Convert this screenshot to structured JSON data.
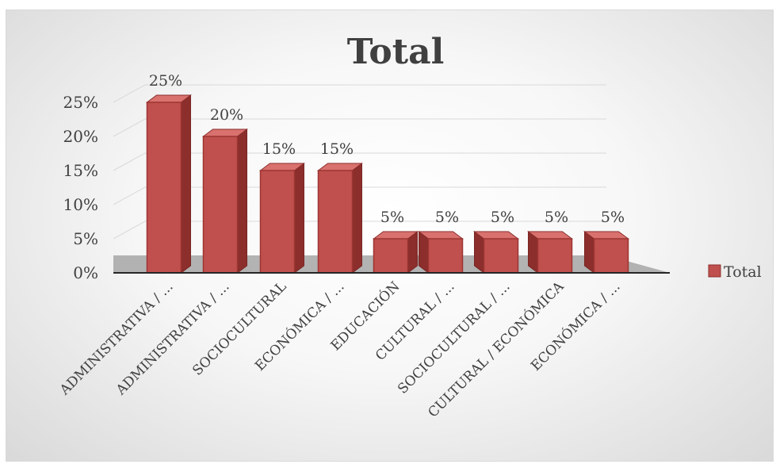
{
  "chart_data": {
    "type": "bar",
    "title": "Total",
    "categories": [
      "ADMINISTRATIVA / ...",
      "ADMINISTRATIVA / ...",
      "SOCIOCULTURAL",
      "ECONÓMICA / ...",
      "EDUCACIÓN",
      "CULTURAL / ...",
      "SOCIOCULTURAL / ...",
      "CULTURAL / ECONÓMICA",
      "ECONÓMICA / ..."
    ],
    "series": [
      {
        "name": "Total",
        "values": [
          25,
          20,
          15,
          15,
          5,
          5,
          5,
          5,
          5
        ]
      }
    ],
    "data_labels": [
      "25%",
      "20%",
      "15%",
      "15%",
      "5%",
      "5%",
      "5%",
      "5%",
      "5%"
    ],
    "y_ticks": [
      "0%",
      "5%",
      "10%",
      "15%",
      "20%",
      "25%"
    ],
    "ylim": [
      0,
      25
    ],
    "grid": true,
    "legend": "right",
    "colors": {
      "bar_front": "#c0504d",
      "bar_side": "#8b2e2c",
      "bar_top": "#d9726f",
      "floor": "#a6a6a6"
    }
  }
}
